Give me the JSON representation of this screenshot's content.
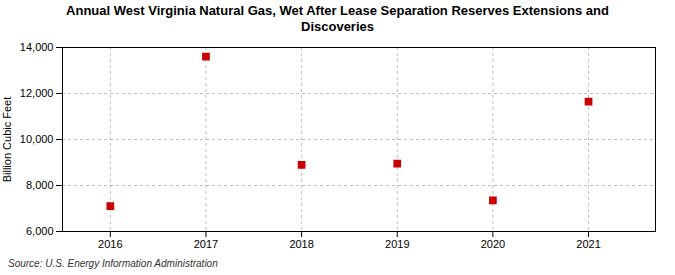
{
  "chart_data": {
    "type": "scatter",
    "title": "Annual West Virginia Natural Gas, Wet After Lease Separation Reserves Extensions and\nDiscoveries",
    "ylabel": "Billion Cubic Feet",
    "source": "Source: U.S. Energy Information Administration",
    "x": [
      2016,
      2017,
      2018,
      2019,
      2020,
      2021
    ],
    "values": [
      7100,
      13600,
      8900,
      8950,
      7350,
      11650
    ],
    "xlim": [
      2015.5,
      2021.7
    ],
    "xticks": [
      2016,
      2017,
      2018,
      2019,
      2020,
      2021
    ],
    "ylim": [
      6000,
      14000
    ],
    "yticks": [
      {
        "value": 6000,
        "label": "6,000"
      },
      {
        "value": 8000,
        "label": "8,000"
      },
      {
        "value": 10000,
        "label": "10,000"
      },
      {
        "value": 12000,
        "label": "12,000"
      },
      {
        "value": 14000,
        "label": "14,000"
      }
    ],
    "color": "#CC0000",
    "marker": "square",
    "grid": true
  }
}
